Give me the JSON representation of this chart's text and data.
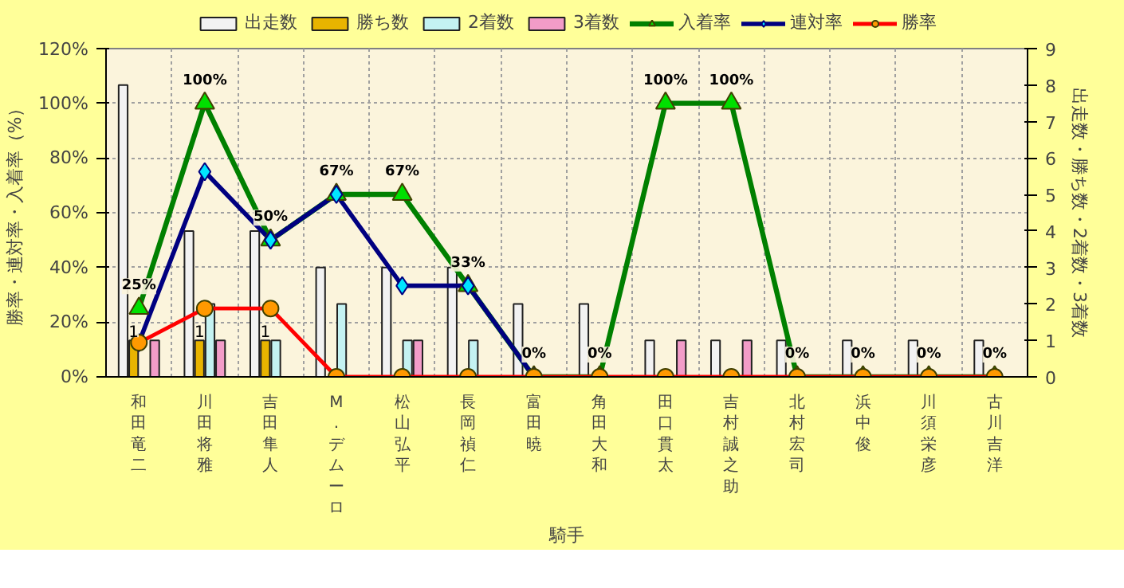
{
  "chart_data": {
    "type": "bar",
    "xlabel": "騎手",
    "ylabel": "勝率・連対率・入着率（%）",
    "y2label": "出走数・勝ち数・2着数・3着数",
    "categories": [
      "和田竜二",
      "川田将雅",
      "吉田隼人",
      "M.デムーロ",
      "松山弘平",
      "長岡禎仁",
      "富田暁",
      "角田大和",
      "田口貫太",
      "吉村誠之助",
      "北村宏司",
      "浜中俊",
      "川須栄彦",
      "古川吉洋"
    ],
    "series": [
      {
        "name": "出走数",
        "axis": "y2",
        "color": "#f2f2f2",
        "values": [
          8,
          4,
          4,
          3,
          3,
          3,
          2,
          2,
          1,
          1,
          1,
          1,
          1,
          1
        ]
      },
      {
        "name": "勝ち数",
        "axis": "y2",
        "color": "#e8b400",
        "values": [
          1,
          1,
          1,
          0,
          0,
          0,
          0,
          0,
          0,
          0,
          0,
          0,
          0,
          0
        ],
        "value_labels": [
          "1",
          "1",
          "1",
          null,
          null,
          null,
          null,
          null,
          null,
          null,
          null,
          null,
          null,
          null
        ]
      },
      {
        "name": "2着数",
        "axis": "y2",
        "color": "#c4f2f2",
        "values": [
          0,
          2,
          1,
          2,
          1,
          1,
          0,
          0,
          0,
          0,
          0,
          0,
          0,
          0
        ]
      },
      {
        "name": "3着数",
        "axis": "y2",
        "color": "#f29cc8",
        "values": [
          1,
          1,
          0,
          0,
          1,
          0,
          0,
          0,
          1,
          1,
          0,
          0,
          0,
          0
        ]
      },
      {
        "name": "入着率",
        "type": "line",
        "marker": "triangle",
        "color": "#008000",
        "values": [
          25,
          100,
          50,
          66.7,
          66.7,
          33.3,
          0,
          0,
          100,
          100,
          0,
          0,
          0,
          0
        ],
        "value_labels": [
          "25%",
          "100%",
          "50%",
          "67%",
          "67%",
          "33%",
          "0%",
          "0%",
          "100%",
          "100%",
          "0%",
          "0%",
          "0%",
          "0%"
        ]
      },
      {
        "name": "連対率",
        "type": "line",
        "marker": "diamond",
        "color": "#000080",
        "values": [
          12.5,
          75,
          50,
          66.7,
          33.3,
          33.3,
          0,
          null,
          null,
          null,
          null,
          null,
          null,
          null
        ]
      },
      {
        "name": "勝率",
        "type": "line",
        "marker": "circle",
        "color": "#ff0000",
        "values": [
          12.5,
          25,
          25,
          0,
          0,
          0,
          0,
          0,
          0,
          0,
          0,
          0,
          0,
          0
        ]
      }
    ],
    "ylim": [
      0,
      120
    ],
    "yticks": [
      {
        "value": 0,
        "label": "0%"
      },
      {
        "value": 20,
        "label": "20%"
      },
      {
        "value": 40,
        "label": "40%"
      },
      {
        "value": 60,
        "label": "60%"
      },
      {
        "value": 80,
        "label": "80%"
      },
      {
        "value": 100,
        "label": "100%"
      },
      {
        "value": 120,
        "label": "120%"
      }
    ],
    "y2lim": [
      0,
      9
    ],
    "y2ticks": [
      0,
      1,
      2,
      3,
      4,
      5,
      6,
      7,
      8,
      9
    ],
    "grid": true,
    "legend": "top"
  }
}
